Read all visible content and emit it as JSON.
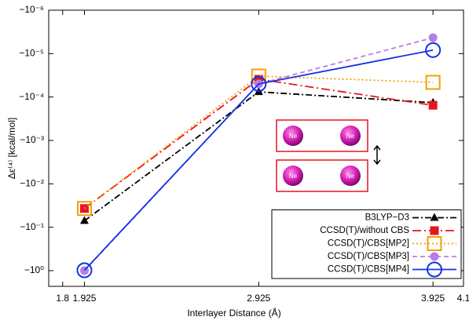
{
  "chart_data": {
    "type": "line",
    "x_label": "Interlayer Distance (Å)",
    "y_label": "Δε⁽⁴⁾ [kcal/mol]",
    "x": [
      1.925,
      2.925,
      3.925
    ],
    "xlim": [
      1.72,
      4.1
    ],
    "xticks": [
      1.8,
      1.925,
      2.925,
      3.925,
      4.1
    ],
    "ylim": [
      -2.3,
      -1e-06
    ],
    "yscale": "log",
    "yticks": [
      {
        "value": -1e-06,
        "label": "−10⁻⁶"
      },
      {
        "value": -1e-05,
        "label": "−10⁻⁵"
      },
      {
        "value": -0.0001,
        "label": "−10⁻⁴"
      },
      {
        "value": -0.001,
        "label": "−10⁻³"
      },
      {
        "value": -0.01,
        "label": "−10⁻²"
      },
      {
        "value": -0.1,
        "label": "−10⁻¹"
      },
      {
        "value": -1,
        "label": "−10⁰"
      }
    ],
    "legend": "lower right",
    "inset_labels": [
      "Ne",
      "Ne",
      "Ne",
      "Ne"
    ],
    "series": [
      {
        "name": "B3LYP−D3",
        "color": "#000000",
        "marker": "triangle",
        "dash": "8,3,2,3",
        "values": [
          -0.071,
          -7.6e-05,
          -0.000135
        ]
      },
      {
        "name": "CCSD(T)/without CBS",
        "color": "#e8141e",
        "marker": "square",
        "dash": "11,4,2,4",
        "values": [
          -0.037,
          -3.9e-05,
          -0.000155
        ]
      },
      {
        "name": "CCSD(T)/CBS[MP2]",
        "color": "#f5a000",
        "marker": "open-square",
        "dash": "2,3",
        "values": [
          -0.037,
          -3.3e-05,
          -4.6e-05
        ]
      },
      {
        "name": "CCSD(T)/CBS[MP3]",
        "color": "#b57ee6",
        "marker": "circle",
        "dash": "6,4",
        "values": [
          -1.0,
          -5e-05,
          -4.3e-06
        ]
      },
      {
        "name": "CCSD(T)/CBS[MP4]",
        "color": "#1432e6",
        "marker": "open-circle",
        "dash": "",
        "values": [
          -0.98,
          -5e-05,
          -8.3e-06
        ]
      }
    ]
  }
}
